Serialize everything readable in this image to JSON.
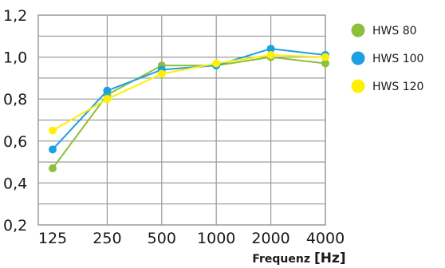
{
  "chart_data": {
    "type": "line",
    "xlabel": "Frequenz",
    "xunit": "[Hz]",
    "ylabel": "",
    "categories": [
      "125",
      "250",
      "500",
      "1000",
      "2000",
      "4000"
    ],
    "y_ticks": [
      "0,2",
      "0,4",
      "0,6",
      "0,8",
      "1,0",
      "1,2"
    ],
    "ylim": [
      0.2,
      1.2
    ],
    "grid": true,
    "legend_position": "right",
    "series": [
      {
        "name": "HWS 80",
        "color": "#8dbf3a",
        "values": [
          0.47,
          0.82,
          0.96,
          0.96,
          1.0,
          0.97
        ]
      },
      {
        "name": "HWS 100",
        "color": "#1ea0e0",
        "values": [
          0.56,
          0.84,
          0.94,
          0.96,
          1.04,
          1.01
        ]
      },
      {
        "name": "HWS 120",
        "color": "#fff000",
        "values": [
          0.65,
          0.8,
          0.92,
          0.97,
          1.01,
          1.0
        ]
      }
    ]
  }
}
